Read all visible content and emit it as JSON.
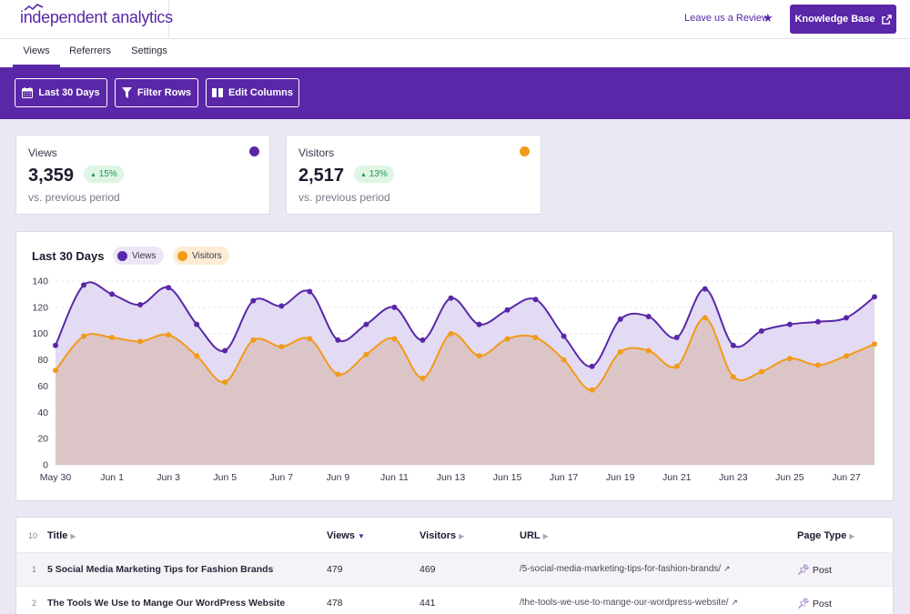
{
  "header": {
    "logo_text": "independent analytics",
    "review_link": "Leave us a Review",
    "kb_button": "Knowledge Base"
  },
  "tabs": [
    {
      "label": "Views",
      "active": true
    },
    {
      "label": "Referrers",
      "active": false
    },
    {
      "label": "Settings",
      "active": false
    }
  ],
  "toolbar": {
    "date_button": "Last 30 Days",
    "filter_button": "Filter Rows",
    "columns_button": "Edit Columns"
  },
  "stats": {
    "views": {
      "label": "Views",
      "value": "3,359",
      "change": "15%",
      "sub": "vs. previous period",
      "color": "#5a27a8"
    },
    "visitors": {
      "label": "Visitors",
      "value": "2,517",
      "change": "13%",
      "sub": "vs. previous period",
      "color": "#f29a19"
    }
  },
  "colors": {
    "accent": "#5a27a8",
    "visitors": "#f29a19",
    "positive": "#1f9a4a"
  },
  "chart": {
    "title": "Last 30 Days",
    "legend_views": "Views",
    "legend_visitors": "Visitors"
  },
  "chart_data": {
    "type": "area",
    "title": "Last 30 Days",
    "x": [
      "May 30",
      "May 31",
      "Jun 1",
      "Jun 2",
      "Jun 3",
      "Jun 4",
      "Jun 5",
      "Jun 6",
      "Jun 7",
      "Jun 8",
      "Jun 9",
      "Jun 10",
      "Jun 11",
      "Jun 12",
      "Jun 13",
      "Jun 14",
      "Jun 15",
      "Jun 16",
      "Jun 17",
      "Jun 18",
      "Jun 19",
      "Jun 20",
      "Jun 21",
      "Jun 22",
      "Jun 23",
      "Jun 24",
      "Jun 25",
      "Jun 26",
      "Jun 27",
      "Jun 28"
    ],
    "x_tick_labels": [
      "May 30",
      "Jun 1",
      "Jun 3",
      "Jun 5",
      "Jun 7",
      "Jun 9",
      "Jun 11",
      "Jun 13",
      "Jun 15",
      "Jun 17",
      "Jun 19",
      "Jun 21",
      "Jun 23",
      "Jun 25",
      "Jun 27"
    ],
    "y_ticks": [
      0,
      20,
      40,
      60,
      80,
      100,
      120,
      140
    ],
    "ylim": [
      0,
      140
    ],
    "grid": true,
    "legend_position": "top-left",
    "series": [
      {
        "name": "Views",
        "color": "#5a27a8",
        "values": [
          91,
          137,
          130,
          122,
          135,
          107,
          87,
          125,
          121,
          132,
          95,
          107,
          120,
          95,
          127,
          107,
          118,
          126,
          98,
          75,
          111,
          113,
          97,
          134,
          91,
          102,
          107,
          109,
          112,
          128
        ]
      },
      {
        "name": "Visitors",
        "color": "#f29a19",
        "values": [
          72,
          98,
          97,
          94,
          99,
          83,
          63,
          95,
          90,
          96,
          69,
          84,
          96,
          66,
          100,
          83,
          96,
          97,
          80,
          57,
          86,
          87,
          75,
          112,
          67,
          71,
          81,
          76,
          83,
          92
        ]
      }
    ]
  },
  "table": {
    "count": "10",
    "columns": [
      "Title",
      "Views",
      "Visitors",
      "URL",
      "Page Type"
    ],
    "rows": [
      {
        "num": "1",
        "title": "5 Social Media Marketing Tips for Fashion Brands",
        "views": "479",
        "visitors": "469",
        "url": "/5-social-media-marketing-tips-for-fashion-brands/",
        "type": "Post"
      },
      {
        "num": "2",
        "title": "The Tools We Use to Mange Our WordPress Website",
        "views": "478",
        "visitors": "441",
        "url": "/the-tools-we-use-to-mange-our-wordpress-website/",
        "type": "Post"
      }
    ]
  }
}
